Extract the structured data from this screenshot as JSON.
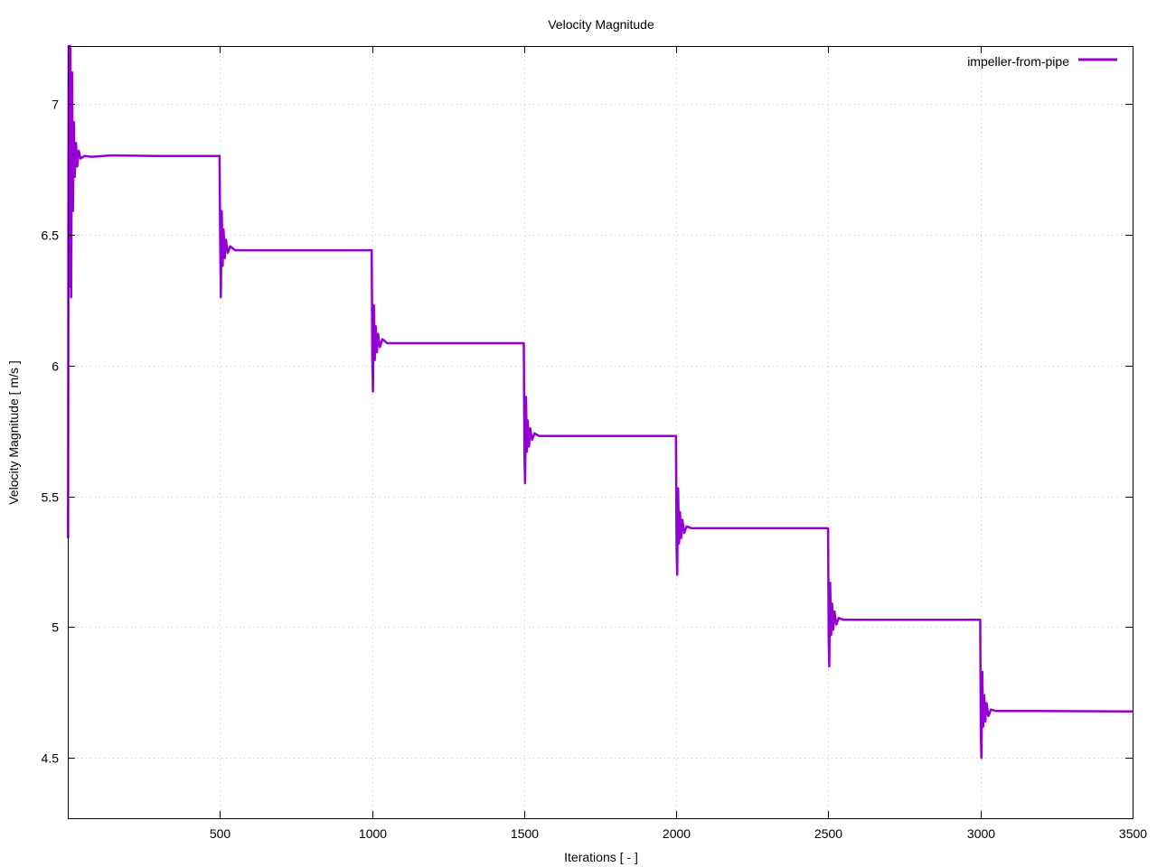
{
  "chart_data": {
    "type": "line",
    "title": "Velocity Magnitude",
    "xlabel": "Iterations [ - ]",
    "ylabel": "Velocity Magnitude [ m/s ]",
    "xlim": [
      0,
      3500
    ],
    "ylim": [
      4.27,
      7.22
    ],
    "x_ticks": [
      500,
      1000,
      1500,
      2000,
      2500,
      3000,
      3500
    ],
    "y_ticks": [
      4.5,
      5,
      5.5,
      6,
      6.5,
      7
    ],
    "y_tick_labels": [
      "4.5",
      "5",
      "5.5",
      "6",
      "6.5",
      "7"
    ],
    "grid": true,
    "legend_position": "top-right",
    "series": [
      {
        "name": "impeller-from-pipe",
        "color": "#9400d3",
        "points": [
          [
            1,
            5.34
          ],
          [
            2,
            6.6
          ],
          [
            3,
            7.22
          ],
          [
            6,
            6.3
          ],
          [
            8,
            7.22
          ],
          [
            11,
            6.26
          ],
          [
            14,
            7.12
          ],
          [
            17,
            6.59
          ],
          [
            20,
            6.93
          ],
          [
            23,
            6.72
          ],
          [
            27,
            6.85
          ],
          [
            31,
            6.76
          ],
          [
            36,
            6.82
          ],
          [
            42,
            6.79
          ],
          [
            55,
            6.8
          ],
          [
            80,
            6.797
          ],
          [
            140,
            6.802
          ],
          [
            300,
            6.8
          ],
          [
            499,
            6.8
          ],
          [
            501,
            6.48
          ],
          [
            503,
            6.26
          ],
          [
            506,
            6.59
          ],
          [
            509,
            6.38
          ],
          [
            512,
            6.52
          ],
          [
            516,
            6.41
          ],
          [
            520,
            6.48
          ],
          [
            526,
            6.43
          ],
          [
            534,
            6.455
          ],
          [
            550,
            6.44
          ],
          [
            600,
            6.44
          ],
          [
            999,
            6.44
          ],
          [
            1001,
            6.02
          ],
          [
            1003,
            5.9
          ],
          [
            1006,
            6.23
          ],
          [
            1009,
            6.02
          ],
          [
            1012,
            6.15
          ],
          [
            1016,
            6.05
          ],
          [
            1020,
            6.12
          ],
          [
            1026,
            6.07
          ],
          [
            1034,
            6.1
          ],
          [
            1050,
            6.085
          ],
          [
            1100,
            6.085
          ],
          [
            1499,
            6.085
          ],
          [
            1501,
            5.66
          ],
          [
            1503,
            5.55
          ],
          [
            1506,
            5.88
          ],
          [
            1509,
            5.67
          ],
          [
            1512,
            5.79
          ],
          [
            1516,
            5.69
          ],
          [
            1520,
            5.76
          ],
          [
            1526,
            5.715
          ],
          [
            1534,
            5.74
          ],
          [
            1550,
            5.73
          ],
          [
            1600,
            5.73
          ],
          [
            1999,
            5.73
          ],
          [
            2001,
            5.3
          ],
          [
            2003,
            5.2
          ],
          [
            2006,
            5.53
          ],
          [
            2009,
            5.32
          ],
          [
            2012,
            5.44
          ],
          [
            2016,
            5.34
          ],
          [
            2020,
            5.41
          ],
          [
            2026,
            5.36
          ],
          [
            2034,
            5.385
          ],
          [
            2050,
            5.378
          ],
          [
            2100,
            5.378
          ],
          [
            2499,
            5.378
          ],
          [
            2501,
            4.95
          ],
          [
            2503,
            4.85
          ],
          [
            2506,
            5.17
          ],
          [
            2509,
            4.97
          ],
          [
            2512,
            5.09
          ],
          [
            2516,
            4.99
          ],
          [
            2520,
            5.06
          ],
          [
            2526,
            5.01
          ],
          [
            2534,
            5.035
          ],
          [
            2550,
            5.028
          ],
          [
            2600,
            5.028
          ],
          [
            2999,
            5.028
          ],
          [
            3001,
            4.6
          ],
          [
            3003,
            4.5
          ],
          [
            3006,
            4.83
          ],
          [
            3009,
            4.62
          ],
          [
            3012,
            4.74
          ],
          [
            3016,
            4.64
          ],
          [
            3020,
            4.71
          ],
          [
            3026,
            4.66
          ],
          [
            3034,
            4.685
          ],
          [
            3050,
            4.68
          ],
          [
            3100,
            4.68
          ],
          [
            3500,
            4.678
          ]
        ]
      }
    ]
  }
}
